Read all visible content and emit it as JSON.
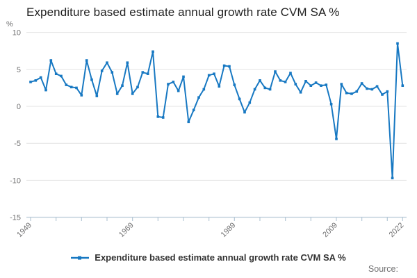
{
  "title": "Expenditure based estimate annual growth rate CVM SA %",
  "legend": {
    "label": "Expenditure based estimate annual growth rate CVM SA %"
  },
  "source_label": "Source:",
  "y_axis": {
    "unit": "%",
    "tick_labels": [
      "10",
      "5",
      "0",
      "-5",
      "-10",
      "-15"
    ],
    "tick_values": [
      10,
      5,
      0,
      -5,
      -10,
      -15
    ]
  },
  "x_axis": {
    "tick_years": [
      1949,
      1954,
      1959,
      1964,
      1969,
      1974,
      1979,
      1984,
      1989,
      1994,
      1999,
      2004,
      2009,
      2014,
      2019,
      2022
    ],
    "labeled_years": [
      "1949",
      "1969",
      "1989",
      "2009",
      "2022"
    ]
  },
  "colors": {
    "line": "#1778c2",
    "gridline": "#e3e3e3",
    "axis": "#b6c8d6",
    "title_text": "#222222",
    "tick_text": "#707071",
    "legend_text": "#333333",
    "source_text": "#707071"
  },
  "chart_data": {
    "type": "line",
    "title": "Expenditure based estimate annual growth rate CVM SA %",
    "xlabel": "",
    "ylabel": "%",
    "ylim": [
      -15,
      10
    ],
    "xlim": [
      1949,
      2022
    ],
    "grid": true,
    "legend_position": "bottom",
    "series_name": "Expenditure based estimate annual growth rate CVM SA %",
    "x": [
      1949,
      1950,
      1951,
      1952,
      1953,
      1954,
      1955,
      1956,
      1957,
      1958,
      1959,
      1960,
      1961,
      1962,
      1963,
      1964,
      1965,
      1966,
      1967,
      1968,
      1969,
      1970,
      1971,
      1972,
      1973,
      1974,
      1975,
      1976,
      1977,
      1978,
      1979,
      1980,
      1981,
      1982,
      1983,
      1984,
      1985,
      1986,
      1987,
      1988,
      1989,
      1990,
      1991,
      1992,
      1993,
      1994,
      1995,
      1996,
      1997,
      1998,
      1999,
      2000,
      2001,
      2002,
      2003,
      2004,
      2005,
      2006,
      2007,
      2008,
      2009,
      2010,
      2011,
      2012,
      2013,
      2014,
      2015,
      2016,
      2017,
      2018,
      2019,
      2020,
      2021,
      2022
    ],
    "values": [
      3.3,
      3.5,
      3.9,
      2.2,
      6.2,
      4.4,
      4.1,
      2.9,
      2.6,
      2.5,
      1.5,
      6.2,
      3.6,
      1.4,
      4.8,
      5.9,
      4.6,
      1.7,
      2.8,
      5.9,
      1.7,
      2.6,
      4.6,
      4.4,
      7.4,
      -1.4,
      -1.5,
      3.0,
      3.3,
      2.1,
      4.0,
      -2.1,
      -0.5,
      1.2,
      2.3,
      4.2,
      4.4,
      2.7,
      5.5,
      5.4,
      2.9,
      1.0,
      -0.8,
      0.5,
      2.3,
      3.5,
      2.5,
      2.3,
      4.7,
      3.5,
      3.3,
      4.5,
      3.0,
      1.9,
      3.4,
      2.8,
      3.2,
      2.8,
      2.9,
      0.3,
      -4.4,
      3.0,
      1.8,
      1.7,
      2.0,
      3.1,
      2.4,
      2.3,
      2.7,
      1.6,
      2.0,
      -9.7,
      8.5,
      2.8
    ]
  }
}
